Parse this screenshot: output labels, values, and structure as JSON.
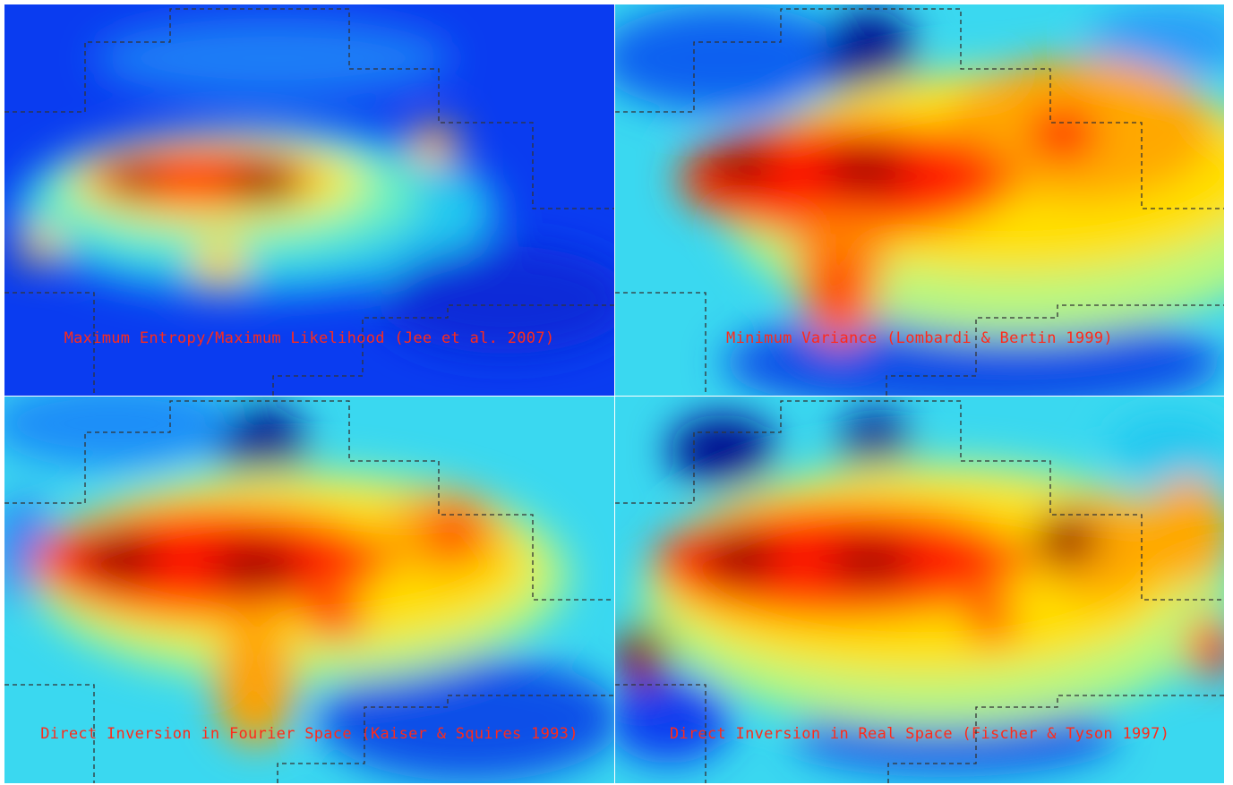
{
  "panels": [
    {
      "caption": "Maximum Entropy/Maximum Likelihood (Jee et al. 2007)"
    },
    {
      "caption": "Minimum Variance (Lombardi & Bertin 1999)"
    },
    {
      "caption": "Direct Inversion in Fourier Space (Kaiser & Squires 1993)"
    },
    {
      "caption": "Direct Inversion in Real Space (Fischer & Tyson 1997)"
    }
  ],
  "colors": {
    "colormap": [
      "#00008f",
      "#0000ff",
      "#0080ff",
      "#00ffff",
      "#80ff80",
      "#ffff00",
      "#ff8000",
      "#ff0000",
      "#800000"
    ],
    "caption": "#ff2a1a",
    "boundary": "#333333"
  }
}
